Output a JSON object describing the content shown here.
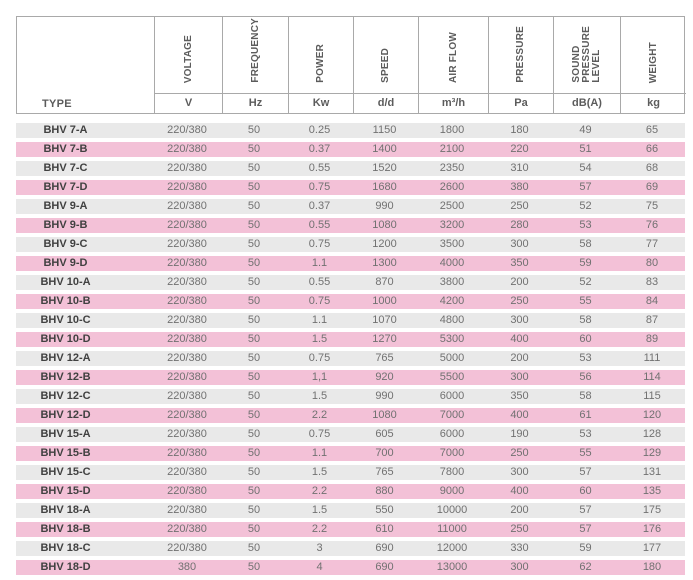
{
  "colors": {
    "border": "#a9a9a9",
    "row_gray": "#e9e9e9",
    "row_pink": "#f3c1d7",
    "type_text": "#414141",
    "value_text": "#717171",
    "header_text": "#5c5c5c"
  },
  "table": {
    "type_header": "TYPE",
    "columns": [
      {
        "id": "voltage",
        "label_lines": [
          "VOLTAGE"
        ],
        "unit": "V"
      },
      {
        "id": "frequency",
        "label_lines": [
          "FREQUENCY"
        ],
        "unit": "Hz"
      },
      {
        "id": "power",
        "label_lines": [
          "POWER"
        ],
        "unit": "Kw"
      },
      {
        "id": "speed",
        "label_lines": [
          "SPEED"
        ],
        "unit": "d/d"
      },
      {
        "id": "air-flow",
        "label_lines": [
          "AIR FLOW"
        ],
        "unit": "m³/h"
      },
      {
        "id": "pressure",
        "label_lines": [
          "PRESSURE"
        ],
        "unit": "Pa"
      },
      {
        "id": "sound-pressure-level",
        "label_lines": [
          "SOUND",
          "PRESSURE",
          "LEVEL"
        ],
        "unit": "dB(A)"
      },
      {
        "id": "weight",
        "label_lines": [
          "WEIGHT"
        ],
        "unit": "kg"
      }
    ],
    "rows": [
      {
        "type": "BHV 7-A",
        "values": [
          "220/380",
          "50",
          "0.25",
          "1150",
          "1800",
          "180",
          "49",
          "65"
        ]
      },
      {
        "type": "BHV 7-B",
        "values": [
          "220/380",
          "50",
          "0.37",
          "1400",
          "2100",
          "220",
          "51",
          "66"
        ]
      },
      {
        "type": "BHV 7-C",
        "values": [
          "220/380",
          "50",
          "0.55",
          "1520",
          "2350",
          "310",
          "54",
          "68"
        ]
      },
      {
        "type": "BHV 7-D",
        "values": [
          "220/380",
          "50",
          "0.75",
          "1680",
          "2600",
          "380",
          "57",
          "69"
        ]
      },
      {
        "type": "BHV 9-A",
        "values": [
          "220/380",
          "50",
          "0.37",
          "990",
          "2500",
          "250",
          "52",
          "75"
        ]
      },
      {
        "type": "BHV 9-B",
        "values": [
          "220/380",
          "50",
          "0.55",
          "1080",
          "3200",
          "280",
          "53",
          "76"
        ]
      },
      {
        "type": "BHV 9-C",
        "values": [
          "220/380",
          "50",
          "0.75",
          "1200",
          "3500",
          "300",
          "58",
          "77"
        ]
      },
      {
        "type": "BHV 9-D",
        "values": [
          "220/380",
          "50",
          "1.1",
          "1300",
          "4000",
          "350",
          "59",
          "80"
        ]
      },
      {
        "type": "BHV 10-A",
        "values": [
          "220/380",
          "50",
          "0.55",
          "870",
          "3800",
          "200",
          "52",
          "83"
        ]
      },
      {
        "type": "BHV 10-B",
        "values": [
          "220/380",
          "50",
          "0.75",
          "1000",
          "4200",
          "250",
          "55",
          "84"
        ]
      },
      {
        "type": "BHV 10-C",
        "values": [
          "220/380",
          "50",
          "1.1",
          "1070",
          "4800",
          "300",
          "58",
          "87"
        ]
      },
      {
        "type": "BHV 10-D",
        "values": [
          "220/380",
          "50",
          "1.5",
          "1270",
          "5300",
          "400",
          "60",
          "89"
        ]
      },
      {
        "type": "BHV 12-A",
        "values": [
          "220/380",
          "50",
          "0.75",
          "765",
          "5000",
          "200",
          "53",
          "111"
        ]
      },
      {
        "type": "BHV 12-B",
        "values": [
          "220/380",
          "50",
          "1,1",
          "920",
          "5500",
          "300",
          "56",
          "114"
        ]
      },
      {
        "type": "BHV 12-C",
        "values": [
          "220/380",
          "50",
          "1.5",
          "990",
          "6000",
          "350",
          "58",
          "115"
        ]
      },
      {
        "type": "BHV 12-D",
        "values": [
          "220/380",
          "50",
          "2.2",
          "1080",
          "7000",
          "400",
          "61",
          "120"
        ]
      },
      {
        "type": "BHV 15-A",
        "values": [
          "220/380",
          "50",
          "0.75",
          "605",
          "6000",
          "190",
          "53",
          "128"
        ]
      },
      {
        "type": "BHV 15-B",
        "values": [
          "220/380",
          "50",
          "1.1",
          "700",
          "7000",
          "250",
          "55",
          "129"
        ]
      },
      {
        "type": "BHV 15-C",
        "values": [
          "220/380",
          "50",
          "1.5",
          "765",
          "7800",
          "300",
          "57",
          "131"
        ]
      },
      {
        "type": "BHV 15-D",
        "values": [
          "220/380",
          "50",
          "2.2",
          "880",
          "9000",
          "400",
          "60",
          "135"
        ]
      },
      {
        "type": "BHV 18-A",
        "values": [
          "220/380",
          "50",
          "1.5",
          "550",
          "10000",
          "200",
          "57",
          "175"
        ]
      },
      {
        "type": "BHV 18-B",
        "values": [
          "220/380",
          "50",
          "2.2",
          "610",
          "11000",
          "250",
          "57",
          "176"
        ]
      },
      {
        "type": "BHV 18-C",
        "values": [
          "220/380",
          "50",
          "3",
          "690",
          "12000",
          "330",
          "59",
          "177"
        ]
      },
      {
        "type": "BHV 18-D",
        "values": [
          "380",
          "50",
          "4",
          "690",
          "13000",
          "300",
          "62",
          "180"
        ]
      }
    ]
  }
}
